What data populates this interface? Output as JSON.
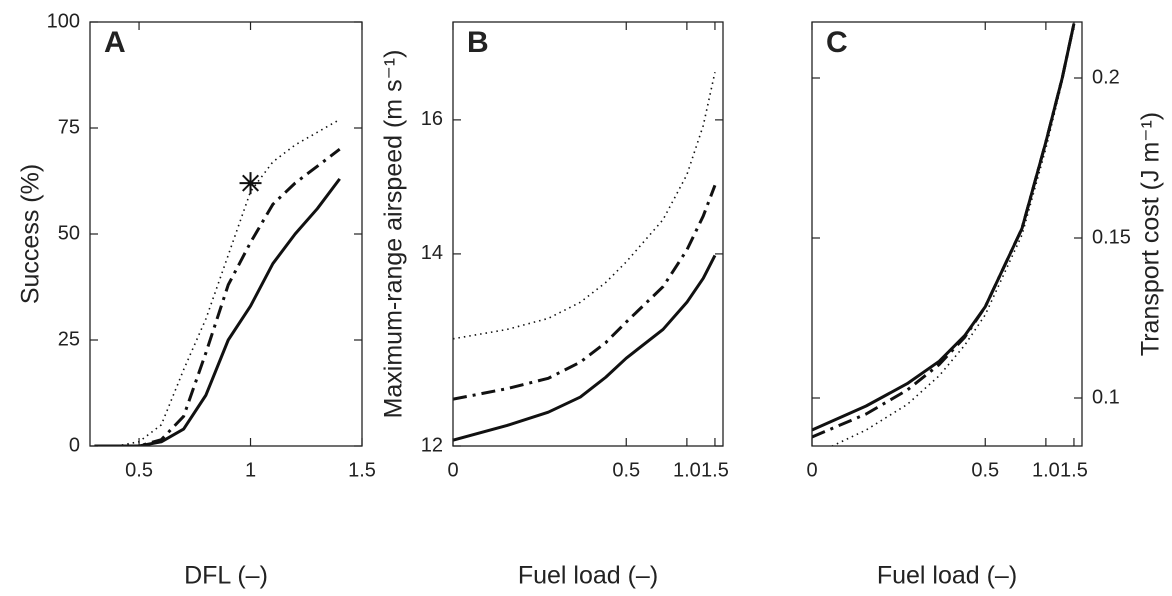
{
  "chart_data": [
    {
      "type": "line",
      "label": "A",
      "xlabel": "DFL (–)",
      "ylabel": "Success (%)",
      "x": [
        0.3,
        0.4,
        0.5,
        0.6,
        0.7,
        0.8,
        0.9,
        1.0,
        1.1,
        1.2,
        1.3,
        1.4
      ],
      "series": [
        {
          "style": "solid",
          "color": "#111111",
          "values": [
            0,
            0,
            0,
            1,
            4,
            12,
            25,
            33,
            43,
            50,
            56,
            63
          ]
        },
        {
          "style": "dashdot",
          "color": "#111111",
          "values": [
            0,
            0,
            0,
            1.5,
            7,
            22,
            38,
            48,
            57,
            62,
            66,
            70
          ]
        },
        {
          "style": "dotted",
          "color": "#111111",
          "values": [
            0,
            0,
            1,
            5,
            18,
            30,
            45,
            60,
            67,
            71,
            74,
            77
          ]
        }
      ],
      "marker": {
        "x": 1,
        "y": 62
      },
      "xlim": [
        0.28,
        1.5
      ],
      "xticks": [
        0.5,
        1,
        1.5
      ],
      "ylim": [
        0,
        100
      ],
      "yticks": [
        0,
        25,
        50,
        75,
        100
      ],
      "yaxis_side": "left"
    },
    {
      "type": "line",
      "label": "B",
      "xlabel": "Fuel load (–)",
      "ylabel": "Maximum-range airspeed (m s⁻¹)",
      "x": [
        0,
        0.1,
        0.2,
        0.3,
        0.4,
        0.5,
        0.75,
        1.0,
        1.25,
        1.5
      ],
      "series": [
        {
          "style": "solid",
          "color": "#111111",
          "values": [
            12.05,
            12.18,
            12.3,
            12.44,
            12.63,
            12.82,
            13.12,
            13.42,
            13.7,
            13.98
          ]
        },
        {
          "style": "dashdot",
          "color": "#111111",
          "values": [
            12.42,
            12.52,
            12.62,
            12.78,
            12.98,
            13.2,
            13.6,
            14.05,
            14.5,
            14.94
          ]
        },
        {
          "style": "dotted",
          "color": "#111111",
          "values": [
            13.02,
            13.12,
            13.24,
            13.42,
            13.65,
            13.9,
            14.45,
            15.1,
            15.9,
            16.9
          ]
        }
      ],
      "xscale": {
        "type": "power",
        "offset": 1,
        "exponent": -2
      },
      "yscale": {
        "type": "power",
        "exponent": -1.5
      },
      "xlim": [
        0,
        1.73
      ],
      "xticks": [
        0,
        0.5,
        {
          "value": 1,
          "label": "1.0"
        },
        1.5
      ],
      "ylim": [
        12,
        18
      ],
      "yticks": [
        12,
        14,
        16
      ],
      "yaxis_side": "left"
    },
    {
      "type": "line",
      "label": "C",
      "xlabel": "Fuel load (–)",
      "ylabel": "Transport cost (J m⁻¹)",
      "x": [
        0,
        0.1,
        0.2,
        0.3,
        0.4,
        0.5,
        0.75,
        1.0,
        1.25,
        1.5
      ],
      "series": [
        {
          "style": "solid",
          "color": "#111111",
          "values": [
            0.09,
            0.0975,
            0.1045,
            0.1115,
            0.1195,
            0.1285,
            0.153,
            0.18,
            0.2,
            0.217
          ]
        },
        {
          "style": "dashdot",
          "color": "#111111",
          "values": [
            0.0878,
            0.095,
            0.1025,
            0.1105,
            0.119,
            0.1285,
            0.153,
            0.18,
            0.2,
            0.217
          ]
        },
        {
          "style": "dotted",
          "color": "#111111",
          "values": [
            0.082,
            0.09,
            0.098,
            0.107,
            0.1165,
            0.126,
            0.151,
            0.178,
            0.199,
            0.216
          ]
        }
      ],
      "xscale": {
        "type": "power",
        "offset": 1,
        "exponent": -2
      },
      "xlim": [
        0,
        1.73
      ],
      "xticks": [
        0,
        0.5,
        {
          "value": 1,
          "label": "1.0"
        },
        1.5
      ],
      "ylim": [
        0.085,
        0.2175
      ],
      "yticks": [
        0.1,
        0.15,
        0.2
      ],
      "yaxis_side": "right"
    }
  ]
}
